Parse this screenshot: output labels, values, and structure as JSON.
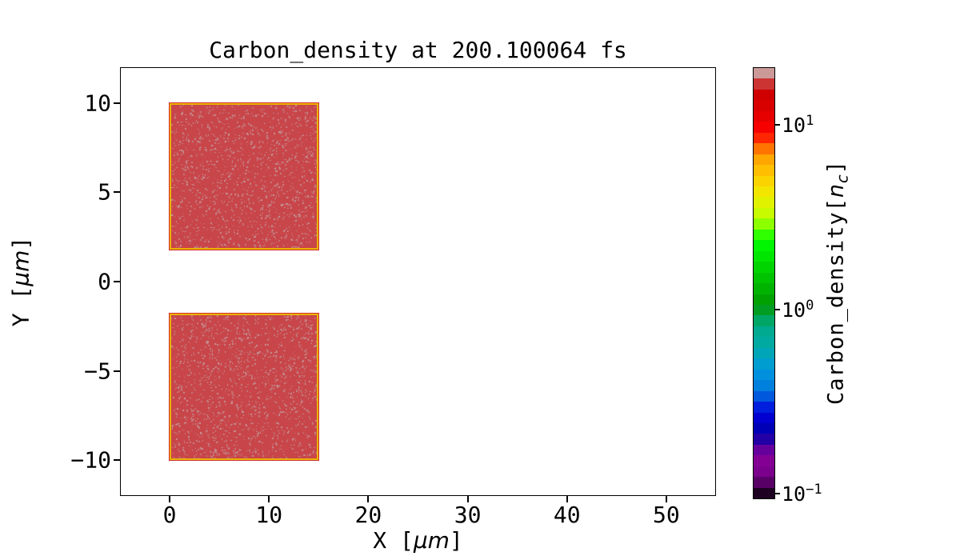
{
  "title": "Carbon_density at 200.100064 fs",
  "axes": {
    "xlabel": {
      "prefix": "X [",
      "unit": "μm",
      "suffix": "]"
    },
    "ylabel": {
      "prefix": "Y [",
      "unit": "μm",
      "suffix": "]"
    }
  },
  "colorbar": {
    "label": {
      "prefix": "Carbon_density[",
      "var": "n",
      "sub": "c",
      "suffix": "]"
    },
    "band_colors_bottom_to_top": [
      "#1e0022",
      "#590066",
      "#7b008c",
      "#840095",
      "#66009d",
      "#2200a6",
      "#0000b7",
      "#0000d0",
      "#001edd",
      "#0059dd",
      "#0080dd",
      "#0090dd",
      "#009dd0",
      "#00a6b7",
      "#00aaa1",
      "#00aa90",
      "#00a666",
      "#009d22",
      "#00a100",
      "#00b300",
      "#00c300",
      "#00d400",
      "#00e600",
      "#00f600",
      "#2fff00",
      "#8cff00",
      "#c8fb00",
      "#e1f200",
      "#f2e600",
      "#fbd400",
      "#ffbf00",
      "#ffa600",
      "#ff7300",
      "#ff2600",
      "#f60000",
      "#e60000",
      "#d90000",
      "#d00000",
      "#cc3333",
      "#cc9999"
    ]
  },
  "blocks": {
    "fill": "#c84549",
    "speckle": "#c49b9e",
    "speckle_dark": "#b23434",
    "border": "#e9b400",
    "edge_outer": "#d22d2d",
    "speckle_count": 1500,
    "speckle_dark_count": 90
  },
  "chart_data": {
    "type": "heatmap",
    "title": "Carbon_density at 200.100064 fs",
    "time_fs": 200.100064,
    "xlabel": "X [μm]",
    "ylabel": "Y [μm]",
    "xlim": [
      -5,
      55
    ],
    "ylim": [
      -12,
      12
    ],
    "xticks": [
      0,
      10,
      20,
      30,
      40,
      50
    ],
    "yticks": [
      10,
      5,
      0,
      -5,
      -10
    ],
    "grid": false,
    "background_value": 0,
    "regions": [
      {
        "x": [
          0,
          15
        ],
        "y": [
          1.8,
          10
        ],
        "value_nc": 10
      },
      {
        "x": [
          0,
          15
        ],
        "y": [
          -10,
          -1.8
        ],
        "value_nc": 10
      }
    ],
    "colorbar": {
      "label": "Carbon_density[n_c]",
      "scale": "log",
      "range": [
        0.0955,
        20.5
      ],
      "ticks": [
        10,
        1,
        0.1
      ],
      "tick_labels": [
        "10^1",
        "10^0",
        "10^-1"
      ],
      "colormap": "nipy_spectral",
      "n_bands": 40,
      "position": "right"
    }
  }
}
